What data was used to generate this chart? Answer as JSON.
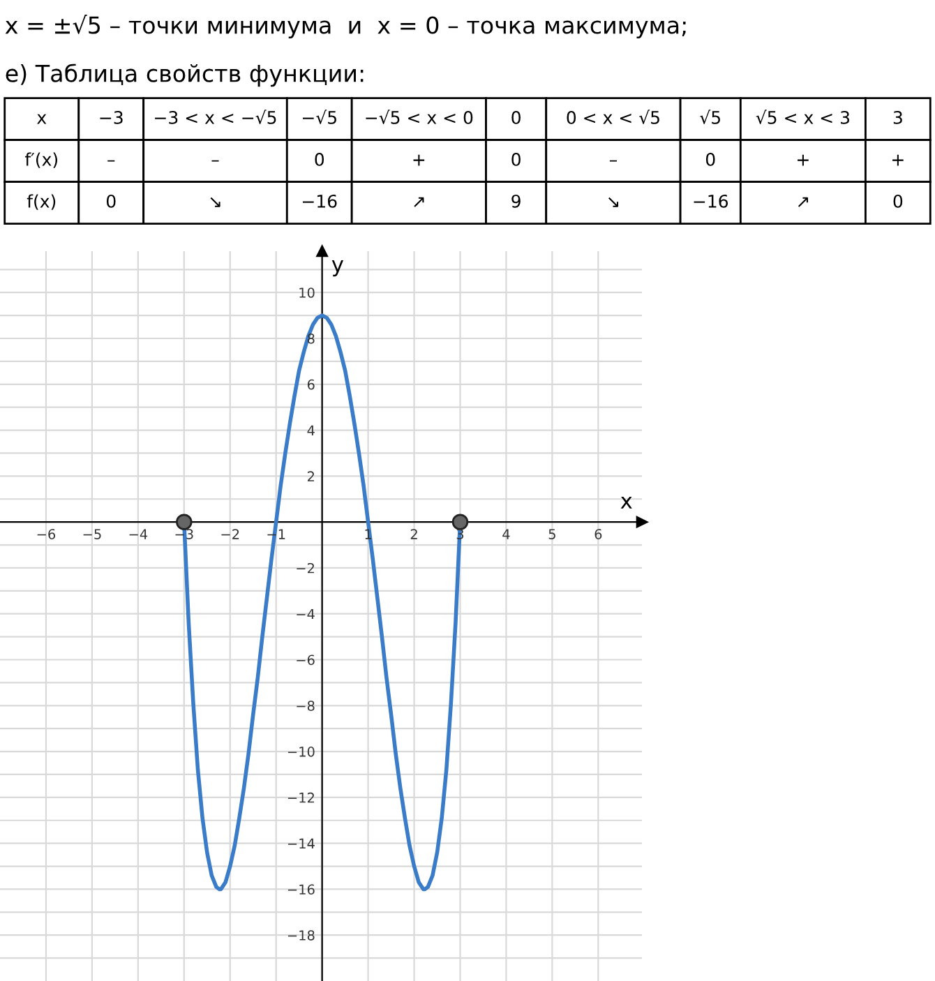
{
  "chart_data": {
    "type": "line",
    "annotations": [
      "x = ±√5 – точки минимума  и  x = 0 – точка максимума;",
      "е) Таблица свойств функции:",
      "x",
      "−3",
      "−3 < x < −√5",
      "−√5",
      "−√5 < x < 0",
      "0",
      "0 < x < √5",
      "√5",
      "√5 < x < 3",
      "3",
      "f′(x)",
      "–",
      "–",
      "0",
      "+",
      "0",
      "–",
      "0",
      "+",
      "+",
      "f(x)",
      "0",
      "↘",
      "−16",
      "↗",
      "9",
      "↘",
      "−16",
      "↗",
      "0"
    ],
    "x": [
      -3,
      -2.9,
      -2.8,
      -2.7,
      -2.6,
      -2.5,
      -2.4,
      -2.3,
      -2.236,
      -2.2,
      -2.1,
      -2,
      -1.9,
      -1.8,
      -1.7,
      -1.6,
      -1.5,
      -1.4,
      -1.3,
      -1.2,
      -1.1,
      -1,
      -0.9,
      -0.8,
      -0.7,
      -0.6,
      -0.5,
      -0.4,
      -0.3,
      -0.2,
      -0.1,
      0,
      0.1,
      0.2,
      0.3,
      0.4,
      0.5,
      0.6,
      0.7,
      0.8,
      0.9,
      1,
      1.1,
      1.2,
      1.3,
      1.4,
      1.5,
      1.6,
      1.7,
      1.8,
      1.9,
      2,
      2.1,
      2.2,
      2.236,
      2.3,
      2.4,
      2.5,
      2.6,
      2.7,
      2.8,
      2.9,
      3
    ],
    "series": [
      {
        "type": "line",
        "color": "#3a7cc8",
        "values": [
          0,
          -4.4,
          -7.9,
          -10.8,
          -12.9,
          -14.4,
          -15.4,
          -15.9,
          -16,
          -16,
          -15.7,
          -15,
          -14.1,
          -12.9,
          -11.6,
          -10.1,
          -8.4,
          -6.8,
          -5,
          -3.3,
          -1.6,
          0,
          1.6,
          3,
          4.3,
          5.5,
          6.6,
          7.4,
          8.1,
          8.6,
          8.9,
          9,
          8.9,
          8.6,
          8.1,
          7.4,
          6.6,
          5.5,
          4.3,
          3,
          1.6,
          0,
          -1.6,
          -3.3,
          -5,
          -6.8,
          -8.4,
          -10.1,
          -11.6,
          -12.9,
          -14.1,
          -15,
          -15.7,
          -16,
          -16,
          -15.9,
          -15.4,
          -14.4,
          -12.9,
          -10.8,
          -7.9,
          -4.4,
          0
        ]
      },
      {
        "type": "scatter",
        "x": [
          -3,
          3
        ],
        "values": [
          0,
          0
        ],
        "color": "#666666"
      }
    ],
    "xlabel": "x",
    "ylabel": "y",
    "xlim": [
      -7,
      6.95
    ],
    "ylim": [
      -20,
      11.8
    ],
    "xticks": [
      -6,
      -5,
      -4,
      -3,
      -2,
      -1,
      {
        "value": 0,
        "label": null
      },
      1,
      2,
      3,
      4,
      5,
      6
    ],
    "yticks": [
      {
        "value": -19,
        "label": null
      },
      -18,
      {
        "value": -17,
        "label": null
      },
      -16,
      {
        "value": -15,
        "label": null
      },
      -14,
      {
        "value": -13,
        "label": null
      },
      -12,
      {
        "value": -11,
        "label": null
      },
      -10,
      {
        "value": -9,
        "label": null
      },
      -8,
      {
        "value": -7,
        "label": null
      },
      -6,
      {
        "value": -5,
        "label": null
      },
      -4,
      {
        "value": -3,
        "label": null
      },
      -2,
      {
        "value": -1,
        "label": null
      },
      {
        "value": 0,
        "label": null
      },
      {
        "value": 1,
        "label": null
      },
      2,
      {
        "value": 3,
        "label": null
      },
      4,
      {
        "value": 5,
        "label": null
      },
      6,
      {
        "value": 7,
        "label": null
      },
      8,
      {
        "value": 9,
        "label": null
      },
      10,
      {
        "value": 11,
        "label": null
      }
    ],
    "grid": true
  }
}
